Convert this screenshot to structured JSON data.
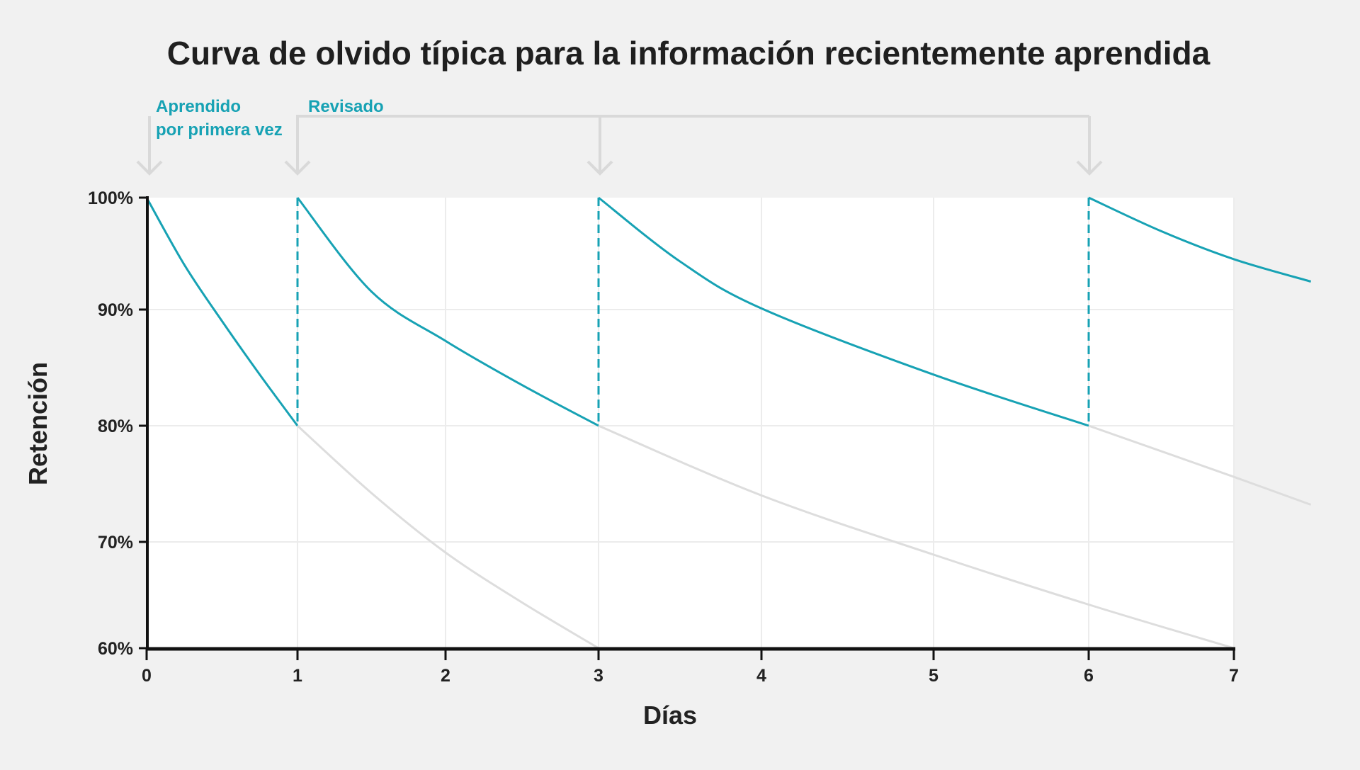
{
  "chart_data": {
    "type": "line",
    "title": "Curva de olvido típica para la información recientemente aprendida",
    "xlabel": "Días",
    "ylabel": "Retención",
    "xlim": [
      0,
      7
    ],
    "ylim": [
      60,
      100
    ],
    "x_ticks": [
      "0",
      "1",
      "2",
      "3",
      "4",
      "5",
      "6",
      "7"
    ],
    "y_ticks": [
      "100%",
      "90%",
      "80%",
      "70%",
      "60%"
    ],
    "grid": true,
    "annotations": {
      "first_learned": [
        "Aprendido",
        "por primera vez"
      ],
      "reviewed": "Revisado",
      "review_days": [
        0,
        1,
        3,
        6
      ]
    },
    "colors": {
      "retained": "#17a2b4",
      "forgotten": "#dddddd",
      "axis": "#111111",
      "grid": "#ececec",
      "arrow": "#d9d9d9"
    },
    "series": [
      {
        "name": "retention-after-learning",
        "kind": "retained",
        "points": [
          [
            0,
            100
          ],
          [
            0.25,
            94
          ],
          [
            0.5,
            89
          ],
          [
            0.75,
            84.4
          ],
          [
            1,
            80
          ]
        ]
      },
      {
        "name": "forgetting-without-review-1",
        "kind": "forgotten",
        "points": [
          [
            1,
            80
          ],
          [
            1.5,
            74.2
          ],
          [
            2,
            69
          ],
          [
            2.5,
            64.3
          ],
          [
            3,
            60
          ]
        ]
      },
      {
        "name": "retention-after-review-1",
        "kind": "retained",
        "points": [
          [
            1,
            100
          ],
          [
            1.5,
            91.6
          ],
          [
            2,
            87.3
          ],
          [
            2.5,
            83.5
          ],
          [
            3,
            80
          ]
        ]
      },
      {
        "name": "forgetting-without-review-2",
        "kind": "forgotten",
        "points": [
          [
            3,
            80
          ],
          [
            4,
            74
          ],
          [
            5,
            68.8
          ],
          [
            6,
            64.1
          ],
          [
            7,
            60
          ]
        ]
      },
      {
        "name": "retention-after-review-2",
        "kind": "retained",
        "points": [
          [
            3,
            100
          ],
          [
            3.5,
            94.3
          ],
          [
            4,
            90.1
          ],
          [
            5,
            84.4
          ],
          [
            6,
            80
          ]
        ]
      },
      {
        "name": "forgetting-without-review-3",
        "kind": "forgotten",
        "points": [
          [
            6,
            80
          ],
          [
            7,
            75.6
          ],
          [
            7.53,
            73.2
          ]
        ]
      },
      {
        "name": "retention-after-review-3",
        "kind": "retained",
        "points": [
          [
            6,
            100
          ],
          [
            6.5,
            97
          ],
          [
            7,
            94.5
          ],
          [
            7.53,
            92.5
          ]
        ]
      }
    ]
  }
}
